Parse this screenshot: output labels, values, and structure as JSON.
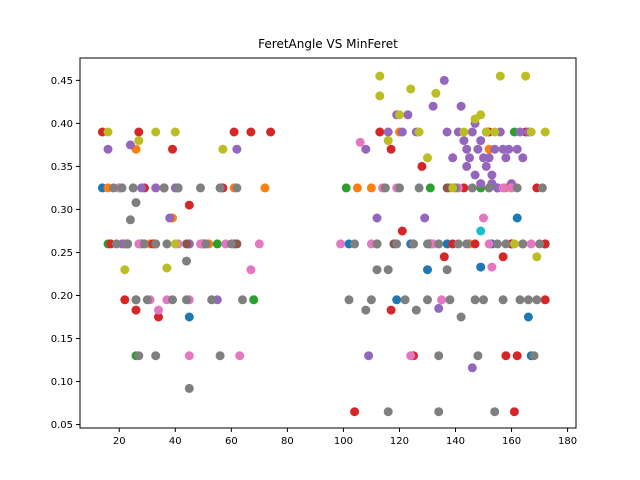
{
  "chart_data": {
    "type": "scatter",
    "title": "FeretAngle VS MinFeret",
    "xlabel": "",
    "ylabel": "",
    "xlim": [
      6.0,
      183.0
    ],
    "ylim": [
      0.046,
      0.476
    ],
    "xticks": [
      20,
      40,
      60,
      80,
      100,
      120,
      140,
      160,
      180
    ],
    "yticks": [
      0.05,
      0.1,
      0.15,
      0.2,
      0.25,
      0.3,
      0.35,
      0.4,
      0.45
    ],
    "grid": false,
    "colors": [
      "#1f77b4",
      "#ff7f0e",
      "#2ca02c",
      "#d62728",
      "#9467bd",
      "#8c564b",
      "#e377c2",
      "#7f7f7f",
      "#bcbd22",
      "#17becf"
    ],
    "series": [
      {
        "values": [
          [
            14,
            0.325
          ],
          [
            23,
            0.26
          ],
          [
            28,
            0.26
          ],
          [
            45,
            0.175
          ],
          [
            61,
            0.26
          ],
          [
            102,
            0.26
          ],
          [
            119,
            0.195
          ],
          [
            124,
            0.26
          ],
          [
            130,
            0.23
          ],
          [
            137,
            0.26
          ],
          [
            149,
            0.233
          ],
          [
            153,
            0.26
          ],
          [
            160,
            0.26
          ],
          [
            162,
            0.29
          ],
          [
            166,
            0.175
          ],
          [
            167,
            0.13
          ],
          [
            172,
            0.26
          ]
        ]
      },
      {
        "values": [
          [
            16,
            0.325
          ],
          [
            22,
            0.26
          ],
          [
            26,
            0.37
          ],
          [
            31,
            0.26
          ],
          [
            39,
            0.29
          ],
          [
            52,
            0.26
          ],
          [
            61,
            0.325
          ],
          [
            72,
            0.325
          ],
          [
            105,
            0.325
          ],
          [
            110,
            0.325
          ],
          [
            120,
            0.39
          ],
          [
            125,
            0.26
          ],
          [
            138,
            0.325
          ],
          [
            145,
            0.26
          ],
          [
            152,
            0.37
          ],
          [
            158,
            0.325
          ],
          [
            164,
            0.26
          ]
        ]
      },
      {
        "values": [
          [
            16,
            0.26
          ],
          [
            26,
            0.13
          ],
          [
            33,
            0.26
          ],
          [
            45,
            0.26
          ],
          [
            55,
            0.26
          ],
          [
            68,
            0.195
          ],
          [
            101,
            0.325
          ],
          [
            112,
            0.26
          ],
          [
            131,
            0.325
          ],
          [
            149,
            0.325
          ],
          [
            161,
            0.39
          ]
        ]
      },
      {
        "values": [
          [
            14,
            0.39
          ],
          [
            17,
            0.26
          ],
          [
            20,
            0.325
          ],
          [
            22,
            0.195
          ],
          [
            23,
            0.26
          ],
          [
            26,
            0.183
          ],
          [
            27,
            0.39
          ],
          [
            29,
            0.325
          ],
          [
            32,
            0.26
          ],
          [
            34,
            0.175
          ],
          [
            36,
            0.325
          ],
          [
            39,
            0.37
          ],
          [
            41,
            0.325
          ],
          [
            45,
            0.305
          ],
          [
            50,
            0.26
          ],
          [
            57,
            0.325
          ],
          [
            61,
            0.39
          ],
          [
            67,
            0.39
          ],
          [
            74,
            0.39
          ],
          [
            104,
            0.065
          ],
          [
            113,
            0.39
          ],
          [
            117,
            0.37
          ],
          [
            117,
            0.183
          ],
          [
            121,
            0.275
          ],
          [
            125,
            0.13
          ],
          [
            128,
            0.35
          ],
          [
            131,
            0.26
          ],
          [
            136,
            0.245
          ],
          [
            139,
            0.26
          ],
          [
            143,
            0.325
          ],
          [
            147,
            0.26
          ],
          [
            152,
            0.39
          ],
          [
            155,
            0.325
          ],
          [
            157,
            0.245
          ],
          [
            158,
            0.13
          ],
          [
            160,
            0.26
          ],
          [
            161,
            0.065
          ],
          [
            162,
            0.13
          ],
          [
            165,
            0.39
          ],
          [
            169,
            0.325
          ],
          [
            172,
            0.26
          ],
          [
            172,
            0.195
          ]
        ]
      },
      {
        "values": [
          [
            16,
            0.37
          ],
          [
            21,
            0.26
          ],
          [
            24,
            0.375
          ],
          [
            28,
            0.325
          ],
          [
            33,
            0.325
          ],
          [
            38,
            0.29
          ],
          [
            40,
            0.325
          ],
          [
            45,
            0.26
          ],
          [
            55,
            0.195
          ],
          [
            62,
            0.37
          ],
          [
            108,
            0.37
          ],
          [
            109,
            0.13
          ],
          [
            112,
            0.29
          ],
          [
            116,
            0.39
          ],
          [
            119,
            0.41
          ],
          [
            121,
            0.39
          ],
          [
            123,
            0.41
          ],
          [
            126,
            0.39
          ],
          [
            129,
            0.29
          ],
          [
            132,
            0.42
          ],
          [
            134,
            0.185
          ],
          [
            136,
            0.45
          ],
          [
            137,
            0.39
          ],
          [
            139,
            0.36
          ],
          [
            141,
            0.39
          ],
          [
            142,
            0.42
          ],
          [
            143,
            0.38
          ],
          [
            144,
            0.37
          ],
          [
            144,
            0.35
          ],
          [
            145,
            0.36
          ],
          [
            146,
            0.39
          ],
          [
            146,
            0.116
          ],
          [
            147,
            0.4
          ],
          [
            147,
            0.34
          ],
          [
            148,
            0.37
          ],
          [
            149,
            0.38
          ],
          [
            149,
            0.33
          ],
          [
            150,
            0.36
          ],
          [
            151,
            0.39
          ],
          [
            151,
            0.35
          ],
          [
            152,
            0.36
          ],
          [
            153,
            0.34
          ],
          [
            153,
            0.33
          ],
          [
            154,
            0.37
          ],
          [
            155,
            0.325
          ],
          [
            156,
            0.39
          ],
          [
            157,
            0.37
          ],
          [
            158,
            0.36
          ],
          [
            159,
            0.37
          ],
          [
            160,
            0.33
          ],
          [
            162,
            0.37
          ],
          [
            163,
            0.39
          ],
          [
            164,
            0.36
          ],
          [
            166,
            0.39
          ]
        ]
      },
      {
        "values": [
          [
            26,
            0.195
          ],
          [
            44,
            0.26
          ],
          [
            62,
            0.26
          ],
          [
            118,
            0.26
          ],
          [
            137,
            0.325
          ]
        ]
      },
      {
        "values": [
          [
            20,
            0.325
          ],
          [
            23,
            0.26
          ],
          [
            27,
            0.26
          ],
          [
            31,
            0.195
          ],
          [
            34,
            0.183
          ],
          [
            37,
            0.195
          ],
          [
            41,
            0.26
          ],
          [
            45,
            0.195
          ],
          [
            45,
            0.13
          ],
          [
            49,
            0.26
          ],
          [
            56,
            0.325
          ],
          [
            58,
            0.26
          ],
          [
            63,
            0.13
          ],
          [
            67,
            0.23
          ],
          [
            70,
            0.26
          ],
          [
            99,
            0.26
          ],
          [
            106,
            0.378
          ],
          [
            110,
            0.26
          ],
          [
            114,
            0.325
          ],
          [
            119,
            0.325
          ],
          [
            124,
            0.13
          ],
          [
            132,
            0.26
          ],
          [
            135,
            0.195
          ],
          [
            141,
            0.325
          ],
          [
            150,
            0.29
          ],
          [
            152,
            0.26
          ],
          [
            153,
            0.233
          ],
          [
            157,
            0.325
          ],
          [
            160,
            0.325
          ],
          [
            167,
            0.26
          ]
        ]
      },
      {
        "values": [
          [
            18,
            0.325
          ],
          [
            19,
            0.26
          ],
          [
            21,
            0.325
          ],
          [
            23,
            0.26
          ],
          [
            24,
            0.288
          ],
          [
            25,
            0.325
          ],
          [
            26,
            0.308
          ],
          [
            26,
            0.195
          ],
          [
            27,
            0.13
          ],
          [
            29,
            0.26
          ],
          [
            30,
            0.195
          ],
          [
            33,
            0.26
          ],
          [
            33,
            0.13
          ],
          [
            36,
            0.325
          ],
          [
            37,
            0.26
          ],
          [
            39,
            0.195
          ],
          [
            41,
            0.325
          ],
          [
            44,
            0.24
          ],
          [
            44,
            0.195
          ],
          [
            45,
            0.092
          ],
          [
            49,
            0.325
          ],
          [
            51,
            0.26
          ],
          [
            53,
            0.195
          ],
          [
            56,
            0.325
          ],
          [
            56,
            0.13
          ],
          [
            60,
            0.26
          ],
          [
            62,
            0.325
          ],
          [
            64,
            0.195
          ],
          [
            102,
            0.195
          ],
          [
            104,
            0.26
          ],
          [
            108,
            0.183
          ],
          [
            110,
            0.195
          ],
          [
            112,
            0.26
          ],
          [
            112,
            0.23
          ],
          [
            115,
            0.325
          ],
          [
            116,
            0.23
          ],
          [
            116,
            0.065
          ],
          [
            119,
            0.26
          ],
          [
            120,
            0.325
          ],
          [
            122,
            0.195
          ],
          [
            125,
            0.26
          ],
          [
            126,
            0.183
          ],
          [
            127,
            0.325
          ],
          [
            130,
            0.26
          ],
          [
            130,
            0.195
          ],
          [
            134,
            0.065
          ],
          [
            134,
            0.26
          ],
          [
            134,
            0.13
          ],
          [
            137,
            0.23
          ],
          [
            138,
            0.195
          ],
          [
            140,
            0.325
          ],
          [
            141,
            0.26
          ],
          [
            142,
            0.175
          ],
          [
            144,
            0.26
          ],
          [
            146,
            0.325
          ],
          [
            147,
            0.195
          ],
          [
            148,
            0.13
          ],
          [
            150,
            0.195
          ],
          [
            152,
            0.325
          ],
          [
            154,
            0.065
          ],
          [
            155,
            0.26
          ],
          [
            157,
            0.195
          ],
          [
            158,
            0.26
          ],
          [
            162,
            0.325
          ],
          [
            163,
            0.195
          ],
          [
            164,
            0.26
          ],
          [
            166,
            0.195
          ],
          [
            168,
            0.13
          ],
          [
            169,
            0.195
          ],
          [
            170,
            0.26
          ],
          [
            171,
            0.325
          ]
        ]
      },
      {
        "values": [
          [
            16,
            0.39
          ],
          [
            22,
            0.23
          ],
          [
            27,
            0.38
          ],
          [
            33,
            0.39
          ],
          [
            37,
            0.232
          ],
          [
            40,
            0.39
          ],
          [
            40,
            0.26
          ],
          [
            57,
            0.37
          ],
          [
            113,
            0.455
          ],
          [
            113,
            0.432
          ],
          [
            116,
            0.38
          ],
          [
            120,
            0.41
          ],
          [
            124,
            0.44
          ],
          [
            127,
            0.39
          ],
          [
            130,
            0.36
          ],
          [
            133,
            0.435
          ],
          [
            139,
            0.325
          ],
          [
            143,
            0.39
          ],
          [
            147,
            0.405
          ],
          [
            149,
            0.41
          ],
          [
            151,
            0.39
          ],
          [
            154,
            0.39
          ],
          [
            156,
            0.455
          ],
          [
            161,
            0.26
          ],
          [
            165,
            0.455
          ],
          [
            167,
            0.39
          ],
          [
            169,
            0.245
          ],
          [
            172,
            0.39
          ]
        ]
      },
      {
        "values": [
          [
            149,
            0.275
          ]
        ]
      }
    ]
  }
}
